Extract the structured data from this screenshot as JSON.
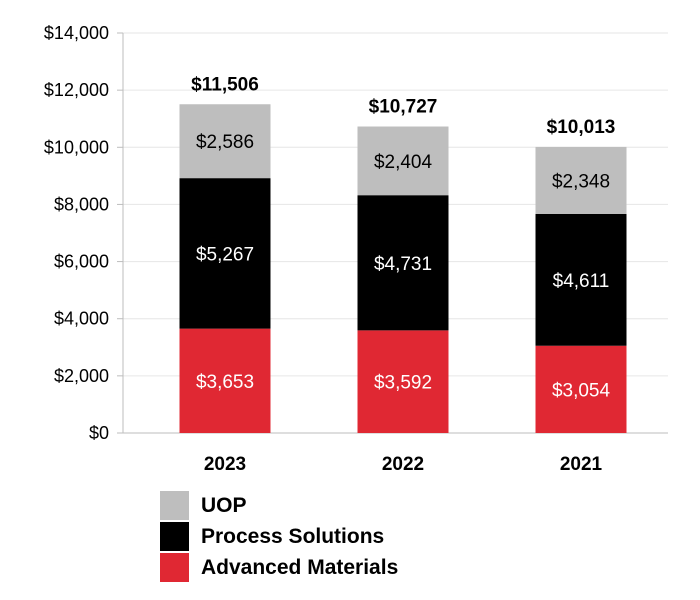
{
  "chart_data": {
    "type": "bar",
    "stacked": true,
    "categories": [
      "2023",
      "2022",
      "2021"
    ],
    "series": [
      {
        "name": "Advanced Materials",
        "values": [
          3653,
          3592,
          3054
        ],
        "labels": [
          "$3,653",
          "$3,592",
          "$3,054"
        ],
        "color": "#e02833",
        "text_color": "#ffffff"
      },
      {
        "name": "Process Solutions",
        "values": [
          5267,
          4731,
          4611
        ],
        "labels": [
          "$5,267",
          "$4,731",
          "$4,611"
        ],
        "color": "#000000",
        "text_color": "#ffffff"
      },
      {
        "name": "UOP",
        "values": [
          2586,
          2404,
          2348
        ],
        "labels": [
          "$2,586",
          "$2,404",
          "$2,348"
        ],
        "color": "#bebebe",
        "text_color": "#000000"
      }
    ],
    "totals": [
      11506,
      10727,
      10013
    ],
    "total_labels": [
      "$11,506",
      "$10,727",
      "$10,013"
    ],
    "ylim": [
      0,
      14000
    ],
    "yticks": [
      0,
      2000,
      4000,
      6000,
      8000,
      10000,
      12000,
      14000
    ],
    "ytick_labels": [
      "$0",
      "$2,000",
      "$4,000",
      "$6,000",
      "$8,000",
      "$10,000",
      "$12,000",
      "$14,000"
    ],
    "grid": true,
    "grid_color": "#e6e6e6",
    "legend_position": "bottom-left",
    "legend_order": [
      "UOP",
      "Process Solutions",
      "Advanced Materials"
    ]
  },
  "legend": {
    "items": [
      {
        "label": "UOP",
        "color": "#bebebe"
      },
      {
        "label": "Process Solutions",
        "color": "#000000"
      },
      {
        "label": "Advanced Materials",
        "color": "#e02833"
      }
    ]
  }
}
